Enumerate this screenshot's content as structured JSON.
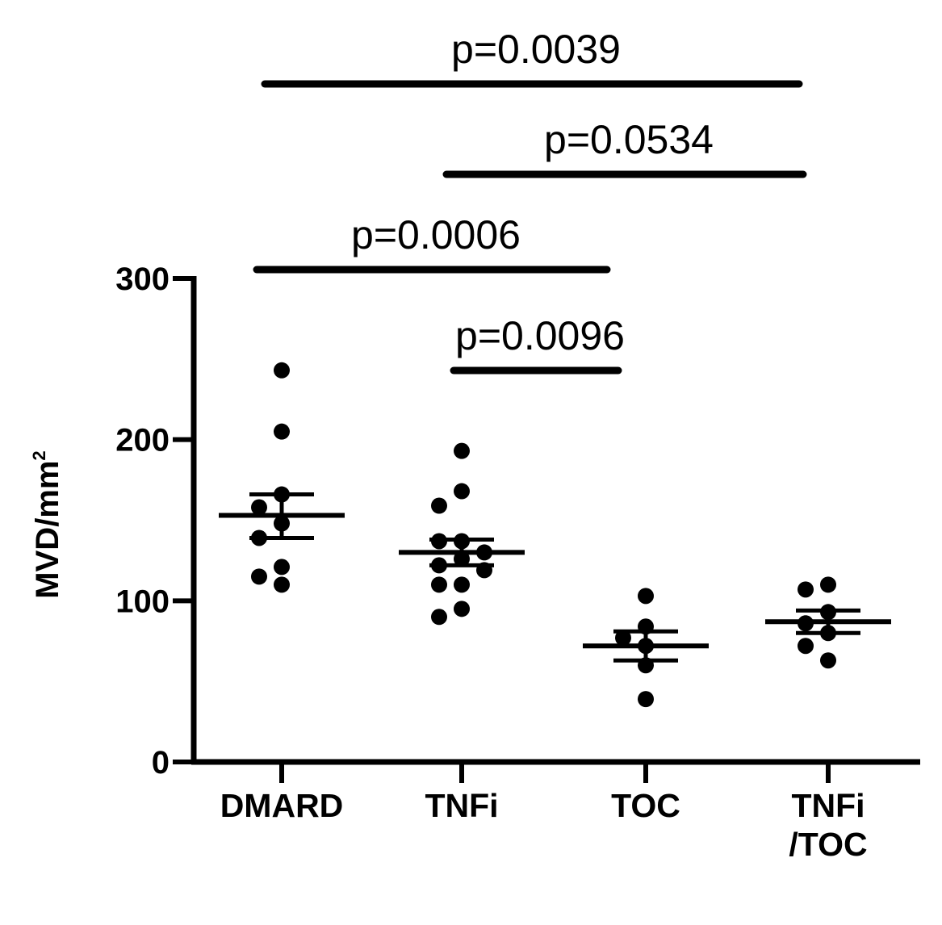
{
  "chart_data": {
    "type": "scatter",
    "title": "",
    "ylabel": "MVD/mm",
    "ylabel_superscript": "2",
    "ylim": [
      0,
      300
    ],
    "yticks": [
      "0",
      "100",
      "200",
      "300"
    ],
    "grid": false,
    "categories": [
      {
        "label_lines": [
          "DMARD"
        ]
      },
      {
        "label_lines": [
          "TNFi"
        ]
      },
      {
        "label_lines": [
          "TOC"
        ]
      },
      {
        "label_lines": [
          "TNFi",
          "/TOC"
        ]
      }
    ],
    "groups": [
      {
        "points": [
          243,
          205,
          166,
          158,
          148,
          139,
          121,
          115,
          110
        ],
        "mean": 153,
        "sem_upper": 166,
        "sem_lower": 139
      },
      {
        "points": [
          193,
          168,
          159,
          137,
          137,
          130,
          126,
          122,
          119,
          110,
          110,
          95,
          90
        ],
        "mean": 130,
        "sem_upper": 138,
        "sem_lower": 122
      },
      {
        "points": [
          103,
          84,
          77,
          72,
          60,
          39
        ],
        "mean": 72,
        "sem_upper": 81,
        "sem_lower": 63
      },
      {
        "points": [
          110,
          107,
          93,
          86,
          80,
          72,
          63
        ],
        "mean": 87,
        "sem_upper": 94,
        "sem_lower": 80
      }
    ],
    "comparisons": [
      {
        "label": "p=0.0039",
        "from": 0,
        "to": 3
      },
      {
        "label": "p=0.0534",
        "from": 1,
        "to": 3
      },
      {
        "label": "p=0.0006",
        "from": 0,
        "to": 2
      },
      {
        "label": "p=0.0096",
        "from": 1,
        "to": 2
      }
    ]
  }
}
